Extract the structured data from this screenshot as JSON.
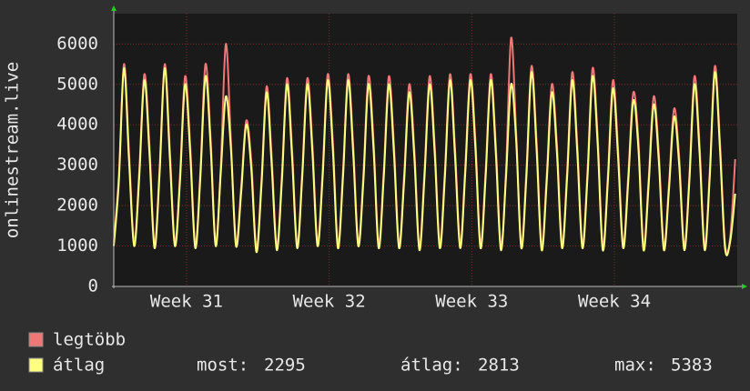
{
  "chart_data": {
    "type": "line",
    "y_label": "onlinestream.live",
    "x": [
      0,
      0.25,
      0.5,
      0.75,
      1,
      1.25,
      1.5,
      1.75,
      2,
      2.25,
      2.5,
      2.75,
      3,
      3.25,
      3.5,
      3.75,
      4,
      4.25,
      4.5,
      4.75,
      5,
      5.25,
      5.5,
      5.75,
      6,
      6.25,
      6.5,
      6.75,
      7,
      7.25,
      7.5,
      7.75,
      8,
      8.25,
      8.5,
      8.75,
      9,
      9.25,
      9.5,
      9.75,
      10,
      10.25,
      10.5,
      10.75,
      11,
      11.25,
      11.5,
      11.75,
      12,
      12.25,
      12.5,
      12.75,
      13,
      13.25,
      13.5,
      13.75,
      14,
      14.25,
      14.5,
      14.75,
      15,
      15.25,
      15.5,
      15.75,
      16,
      16.25,
      16.5,
      16.75,
      17,
      17.25,
      17.5,
      17.75,
      18,
      18.25,
      18.5,
      18.75,
      19,
      19.25,
      19.5,
      19.75,
      20,
      20.25,
      20.5,
      20.75,
      21,
      21.25,
      21.5,
      21.75,
      22,
      22.25,
      22.5,
      22.75,
      23,
      23.25,
      23.5,
      23.75,
      24,
      24.25,
      24.5,
      24.75,
      25,
      25.25,
      25.5,
      25.75,
      26,
      26.25,
      26.5,
      26.75,
      27,
      27.25,
      27.5,
      27.75,
      28,
      28.25,
      28.5,
      28.75,
      29,
      29.25,
      29.5,
      29.75,
      30,
      30.25,
      30.5
    ],
    "series": [
      {
        "name": "legtöbb",
        "color": "#ee7777",
        "values": [
          1100,
          2750,
          5500,
          3300,
          1100,
          2850,
          5250,
          3500,
          1050,
          2950,
          5500,
          3400,
          1100,
          2750,
          5200,
          3500,
          1050,
          2850,
          5500,
          3700,
          1100,
          2950,
          6000,
          3600,
          1100,
          2450,
          4100,
          3100,
          950,
          2650,
          4950,
          3200,
          1000,
          2750,
          5150,
          3400,
          1050,
          2850,
          5150,
          3500,
          1100,
          2850,
          5250,
          3600,
          1050,
          2850,
          5250,
          3500,
          1100,
          2750,
          5200,
          3600,
          1050,
          2850,
          5200,
          3500,
          1050,
          2750,
          5000,
          3400,
          1000,
          2850,
          5200,
          3500,
          1050,
          2850,
          5250,
          3400,
          1050,
          2950,
          5250,
          3600,
          1050,
          2850,
          5250,
          3500,
          1000,
          2850,
          6150,
          3800,
          1050,
          2850,
          5450,
          3600,
          1000,
          2750,
          5000,
          3500,
          1050,
          2850,
          5300,
          3500,
          1050,
          2850,
          5400,
          3700,
          1000,
          2750,
          5100,
          3400,
          1050,
          2750,
          4800,
          3600,
          1000,
          2650,
          4700,
          3300,
          1000,
          2550,
          4400,
          3200,
          1000,
          2750,
          5200,
          3500,
          1000,
          2850,
          5450,
          3600,
          1050,
          1200,
          3150
        ]
      },
      {
        "name": "átlag",
        "color": "#ffff80",
        "values": [
          1000,
          2600,
          5400,
          3100,
          1000,
          2700,
          5100,
          3300,
          950,
          2800,
          5400,
          3200,
          1000,
          2600,
          5000,
          3300,
          950,
          2700,
          5200,
          3500,
          1000,
          2800,
          4700,
          3400,
          1000,
          2300,
          4000,
          2900,
          850,
          2500,
          4800,
          3000,
          900,
          2600,
          5000,
          3200,
          950,
          2700,
          5000,
          3300,
          1000,
          2700,
          5100,
          3400,
          950,
          2700,
          5100,
          3300,
          1000,
          2600,
          5000,
          3400,
          950,
          2700,
          5000,
          3300,
          950,
          2600,
          4800,
          3200,
          900,
          2700,
          5000,
          3300,
          950,
          2700,
          5100,
          3200,
          950,
          2800,
          5100,
          3400,
          950,
          2700,
          5100,
          3300,
          900,
          2700,
          5000,
          3600,
          950,
          2700,
          5300,
          3400,
          900,
          2600,
          4800,
          3300,
          950,
          2700,
          5100,
          3300,
          950,
          2700,
          5200,
          3500,
          900,
          2600,
          4900,
          3200,
          950,
          2600,
          4600,
          3400,
          900,
          2500,
          4500,
          3100,
          900,
          2400,
          4200,
          3000,
          900,
          2600,
          5000,
          3300,
          900,
          2700,
          5300,
          3400,
          950,
          1100,
          2295
        ]
      }
    ],
    "stats": [
      {
        "label": "most:",
        "value": 2295
      },
      {
        "label": "átlag:",
        "value": 2813
      },
      {
        "label": "max:",
        "value": 5383
      }
    ],
    "xlim": [
      0,
      30.6
    ],
    "xticks": [
      {
        "value": 3.57,
        "label": "Week 31"
      },
      {
        "value": 10.57,
        "label": "Week 32"
      },
      {
        "value": 17.57,
        "label": "Week 33"
      },
      {
        "value": 24.57,
        "label": "Week 34"
      }
    ],
    "ylim": [
      0,
      6750
    ],
    "yticks": [
      0,
      1000,
      2000,
      3000,
      4000,
      5000,
      6000
    ],
    "grid": true
  }
}
